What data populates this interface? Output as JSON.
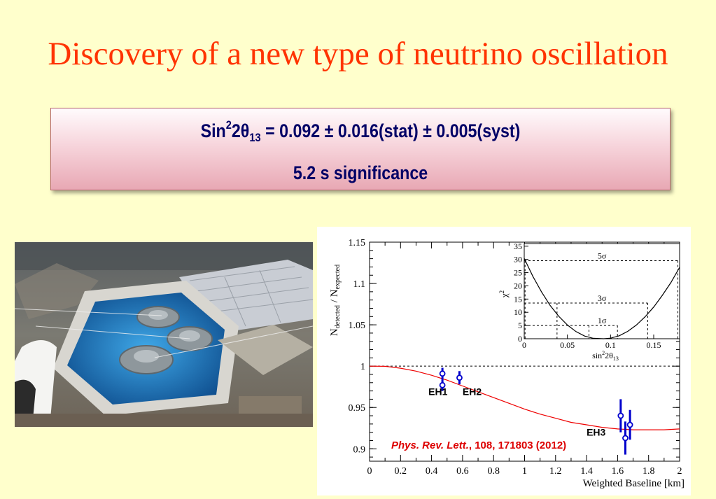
{
  "slide": {
    "title": "Discovery of a new type of neutrino oscillation",
    "result": {
      "sin_label": "Sin",
      "sup": "2",
      "two": "2",
      "theta": "θ",
      "sub": "13",
      "value_text": " = 0.092 ± 0.016(stat) ± 0.005(syst)",
      "significance": "5.2 s significance"
    },
    "photo": {
      "description_icon": "detector-pool-photo-icon"
    }
  },
  "chart_data": [
    {
      "type": "scatter",
      "title": "",
      "xlabel": "Weighted Baseline [km]",
      "ylabel": "N_detected / N_expected",
      "ylabel_parts": {
        "n": "N",
        "sub1": "detected",
        "slash": " / N",
        "sub2": "expected"
      },
      "xlim": [
        0,
        2
      ],
      "ylim": [
        0.885,
        1.15
      ],
      "x_ticks": [
        "0",
        "0.2",
        "0.4",
        "0.6",
        "0.8",
        "1",
        "1.2",
        "1.4",
        "1.6",
        "1.8",
        "2"
      ],
      "x_tick_values": [
        0,
        0.2,
        0.4,
        0.6,
        0.8,
        1,
        1.2,
        1.4,
        1.6,
        1.8,
        2
      ],
      "y_ticks": [
        "0.9",
        "0.95",
        "1",
        "1.05",
        "1.1",
        "1.15"
      ],
      "y_tick_values": [
        0.9,
        0.95,
        1.0,
        1.05,
        1.1,
        1.15
      ],
      "points": [
        {
          "x": 0.47,
          "y": 0.991,
          "err": 0.007
        },
        {
          "x": 0.47,
          "y": 0.977,
          "err": 0.007
        },
        {
          "x": 0.58,
          "y": 0.986,
          "err": 0.008
        },
        {
          "x": 1.62,
          "y": 0.94,
          "err": 0.02
        },
        {
          "x": 1.65,
          "y": 0.913,
          "err": 0.02
        },
        {
          "x": 1.68,
          "y": 0.929,
          "err": 0.018
        }
      ],
      "curve": [
        [
          0,
          1.0
        ],
        [
          0.1,
          0.9998
        ],
        [
          0.2,
          0.9975
        ],
        [
          0.3,
          0.994
        ],
        [
          0.4,
          0.989
        ],
        [
          0.5,
          0.983
        ],
        [
          0.6,
          0.976
        ],
        [
          0.7,
          0.969
        ],
        [
          0.8,
          0.962
        ],
        [
          0.9,
          0.955
        ],
        [
          1.0,
          0.948
        ],
        [
          1.1,
          0.942
        ],
        [
          1.2,
          0.937
        ],
        [
          1.3,
          0.932
        ],
        [
          1.4,
          0.929
        ],
        [
          1.5,
          0.926
        ],
        [
          1.6,
          0.924
        ],
        [
          1.7,
          0.923
        ],
        [
          1.8,
          0.923
        ],
        [
          1.9,
          0.923
        ],
        [
          2.0,
          0.924
        ]
      ],
      "reference_line": 1.0,
      "labels": [
        {
          "text": "EH1",
          "x": 0.38,
          "y": 0.965
        },
        {
          "text": "EH2",
          "x": 0.6,
          "y": 0.965
        },
        {
          "text": "EH3",
          "x": 1.4,
          "y": 0.916
        }
      ],
      "citation": {
        "journal": "Phys. Rev. Lett.",
        "rest": ", 108, 171803 (2012)"
      },
      "colors": {
        "data": "#0000cc",
        "curve": "#ee0000",
        "citation": "#dd0000"
      }
    },
    {
      "type": "line",
      "title": "",
      "xlabel": "sin²2θ₁₃",
      "xlabel_parts": {
        "sin": "sin",
        "sup": "2",
        "mid": "2θ",
        "sub": "13"
      },
      "ylabel": "χ²",
      "ylabel_parts": {
        "chi": "χ",
        "sup": "2"
      },
      "xlim": [
        0,
        0.18
      ],
      "ylim": [
        0,
        36
      ],
      "x_ticks": [
        "0",
        "0.05",
        "0.1",
        "0.15"
      ],
      "x_tick_values": [
        0,
        0.05,
        0.1,
        0.15
      ],
      "y_ticks": [
        "0",
        "5",
        "10",
        "15",
        "20",
        "25",
        "30",
        "35"
      ],
      "y_tick_values": [
        0,
        5,
        10,
        15,
        20,
        25,
        30,
        35
      ],
      "curve": [
        [
          0,
          30.4
        ],
        [
          0.01,
          23.6
        ],
        [
          0.02,
          17.7
        ],
        [
          0.03,
          12.6
        ],
        [
          0.04,
          8.5
        ],
        [
          0.05,
          5.2
        ],
        [
          0.06,
          2.7
        ],
        [
          0.07,
          1.0
        ],
        [
          0.08,
          0.15
        ],
        [
          0.092,
          0.0
        ],
        [
          0.1,
          0.2
        ],
        [
          0.11,
          1.1
        ],
        [
          0.12,
          2.8
        ],
        [
          0.13,
          5.2
        ],
        [
          0.14,
          8.3
        ],
        [
          0.15,
          12.0
        ],
        [
          0.16,
          16.4
        ],
        [
          0.17,
          21.3
        ],
        [
          0.18,
          27.0
        ]
      ],
      "sigma_lines": [
        {
          "label": "1σ",
          "level": 5.0,
          "x_low": 0.075,
          "x_high": 0.108,
          "label_x": 0.085
        },
        {
          "label": "3σ",
          "level": 13.5,
          "x_low": 0.038,
          "x_high": 0.143,
          "label_x": 0.085
        },
        {
          "label": "5σ",
          "level": 29.5,
          "x_low": 0.001,
          "x_high": 0.178,
          "label_x": 0.085
        }
      ]
    }
  ]
}
